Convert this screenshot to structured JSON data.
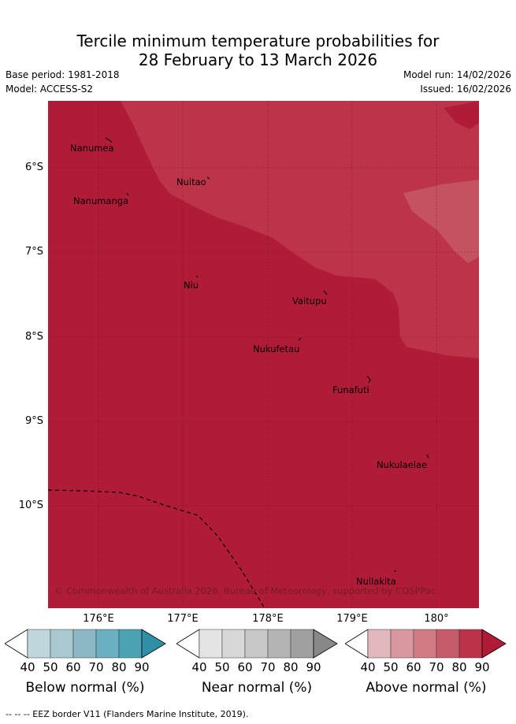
{
  "title": {
    "line1": "Tercile minimum temperature probabilities for",
    "line2": "28 February to 13 March 2026"
  },
  "meta": {
    "base_period": "Base period: 1981-2018",
    "model": "Model: ACCESS-S2",
    "model_run": "Model run: 14/02/2026",
    "issued": "Issued: 16/02/2026"
  },
  "map": {
    "lat_labels": [
      "6°S",
      "7°S",
      "8°S",
      "9°S",
      "10°S"
    ],
    "lon_labels": [
      "176°E",
      "177°E",
      "178°E",
      "179°E",
      "180°"
    ],
    "places": [
      "Nanumea",
      "Nuitao",
      "Nanumanga",
      "Niu",
      "Vaitupu",
      "Nukufetau",
      "Funafuti",
      "Nukulaelae",
      "Nuilakita"
    ],
    "copyright": "© Commonwealth of Australia 2026, Bureau of Meteorology, supported by COSPPac",
    "colors": {
      "above_90": "#b01c37",
      "above_80": "#bd3448",
      "above_70": "#c5525f"
    }
  },
  "legend": {
    "ticks": [
      "40",
      "50",
      "60",
      "70",
      "80",
      "90"
    ],
    "below": {
      "label": "Below normal (%)",
      "colors": [
        "#c0d6dd",
        "#a8c9cf",
        "#8ab9c5",
        "#6ab0c0",
        "#48a2b4",
        "#2f8fa6"
      ]
    },
    "near": {
      "label": "Near normal (%)",
      "colors": [
        "#e4e4e4",
        "#d7d7d7",
        "#c8c8c8",
        "#b4b4b4",
        "#a0a0a0",
        "#888888"
      ]
    },
    "above": {
      "label": "Above normal (%)",
      "colors": [
        "#e1b8be",
        "#d9989f",
        "#d27b84",
        "#c65c69",
        "#bb3249",
        "#b01c37"
      ]
    }
  },
  "footer": "--  --  -- EEZ border V11 (Flanders Marine Institute, 2019)."
}
